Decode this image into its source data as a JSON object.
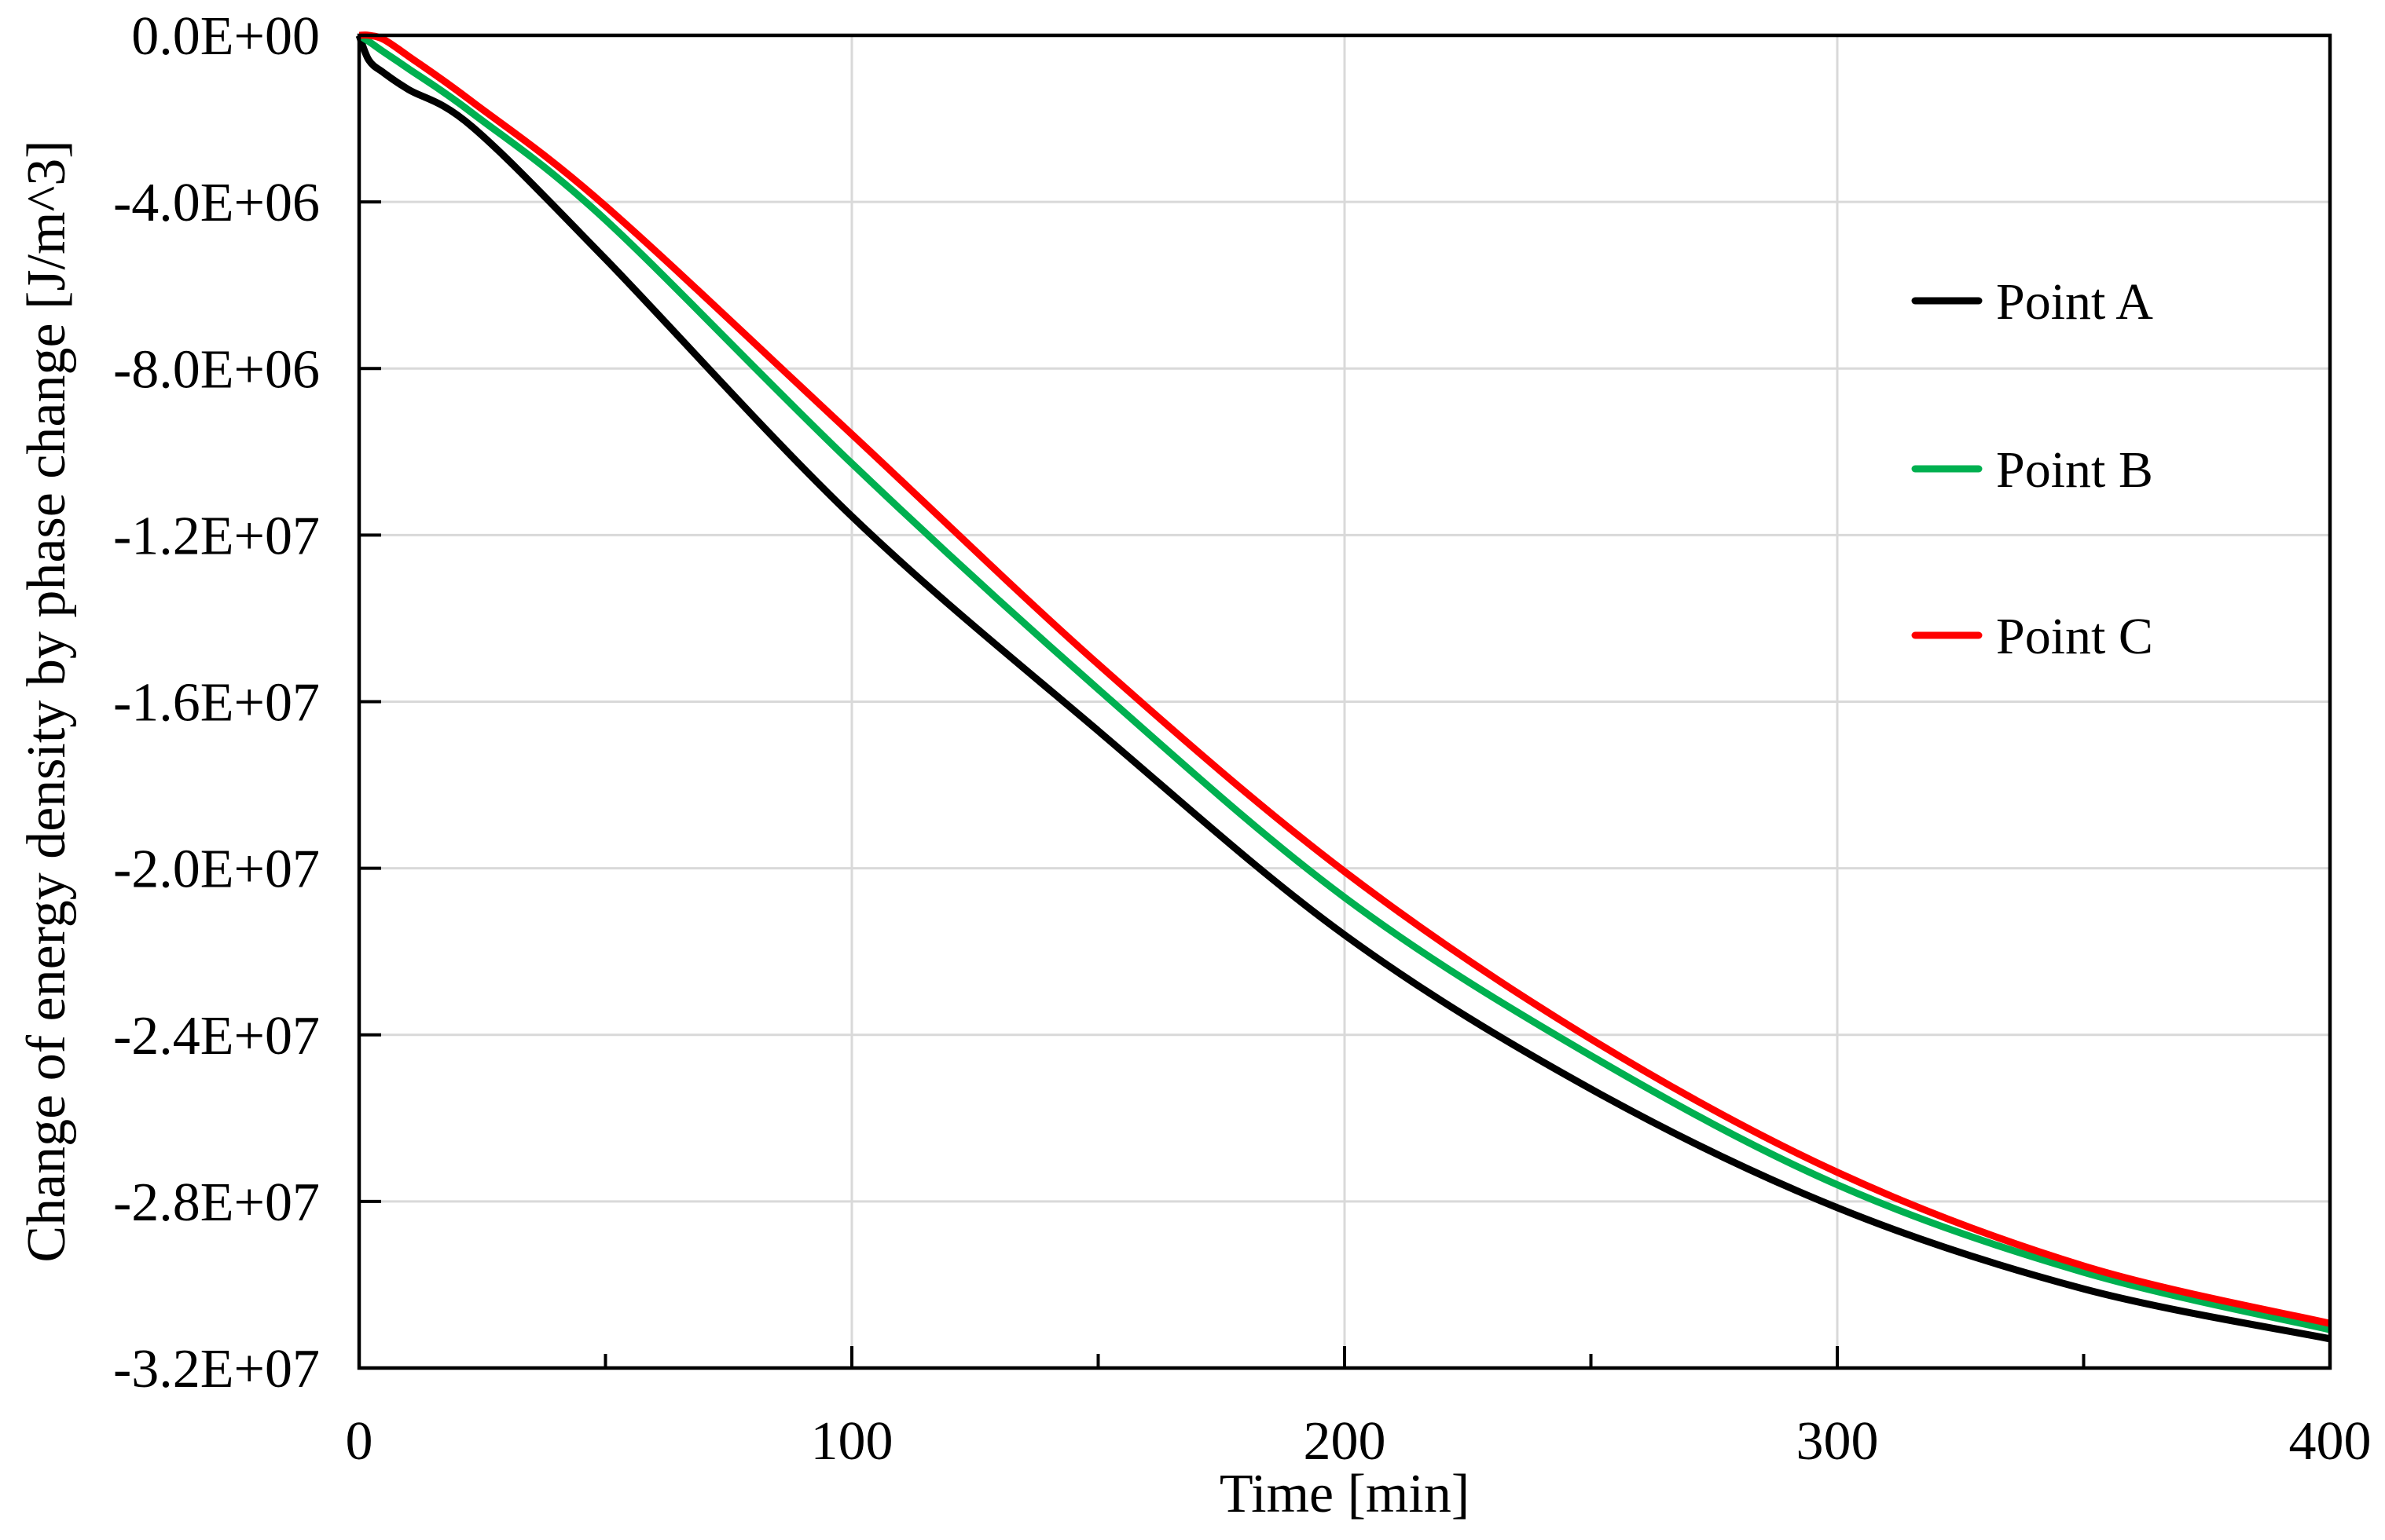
{
  "chart_data": {
    "type": "line",
    "title": "",
    "xlabel": "Time [min]",
    "ylabel": "Change of energy density by phase change [J/m^3]",
    "xlim": [
      0,
      400
    ],
    "ylim": [
      -32000000,
      0
    ],
    "x_ticks": [
      0,
      100,
      200,
      300,
      400
    ],
    "x_tick_labels": [
      "0",
      "100",
      "200",
      "300",
      "400"
    ],
    "x_minor_ticks": [
      50,
      150,
      250,
      350
    ],
    "y_ticks": [
      0,
      -4000000,
      -8000000,
      -12000000,
      -16000000,
      -20000000,
      -24000000,
      -28000000,
      -32000000
    ],
    "y_tick_labels": [
      "0.0E+00",
      "-4.0E+06",
      "-8.0E+06",
      "-1.2E+07",
      "-1.6E+07",
      "-2.0E+07",
      "-2.4E+07",
      "-2.8E+07",
      "-3.2E+07"
    ],
    "grid": true,
    "legend_position": "inside upper right",
    "x": [
      0,
      2,
      5,
      10,
      23,
      50,
      100,
      150,
      200,
      250,
      300,
      350,
      400
    ],
    "series": [
      {
        "name": "Point A",
        "color": "#000000",
        "values": [
          0,
          -600000,
          -900000,
          -1300000,
          -2200000,
          -5370000,
          -11550000,
          -16700000,
          -21600000,
          -25300000,
          -28150000,
          -30100000,
          -31300000
        ]
      },
      {
        "name": "Point B",
        "color": "#00b050",
        "values": [
          0,
          -150000,
          -400000,
          -800000,
          -1870000,
          -4430000,
          -10280000,
          -15700000,
          -20700000,
          -24500000,
          -27600000,
          -29700000,
          -31080000
        ]
      },
      {
        "name": "Point C",
        "color": "#ff0000",
        "values": [
          0,
          0,
          -100000,
          -500000,
          -1600000,
          -4100000,
          -9580000,
          -15100000,
          -20080000,
          -24100000,
          -27300000,
          -29550000,
          -30930000
        ]
      }
    ]
  },
  "legend": {
    "items": [
      {
        "label": "Point A",
        "color": "#000000"
      },
      {
        "label": "Point B",
        "color": "#00b050"
      },
      {
        "label": "Point C",
        "color": "#ff0000"
      }
    ]
  },
  "style": {
    "grid_color": "#d9d9d9",
    "axis_color": "#000000"
  }
}
